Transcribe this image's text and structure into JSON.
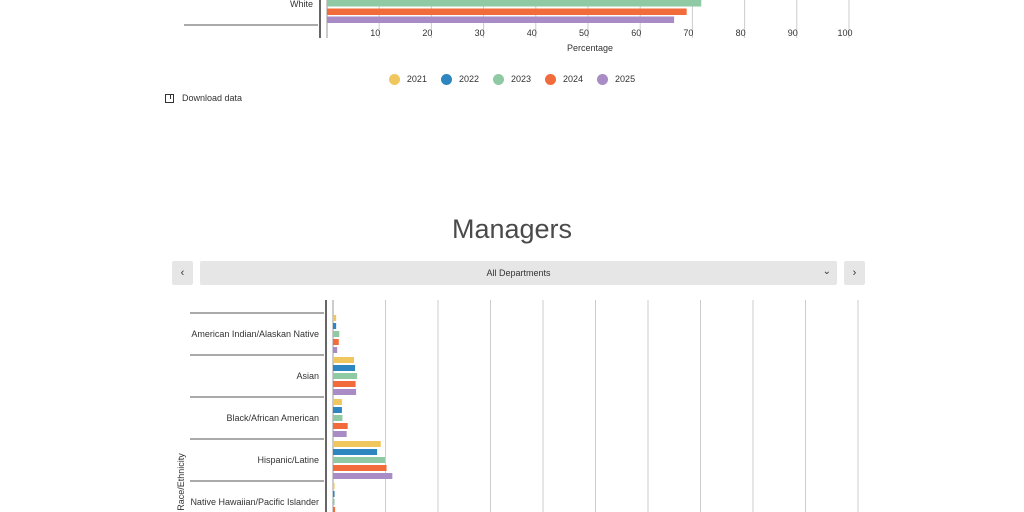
{
  "colors": {
    "2021": "#f0c75e",
    "2022": "#2e86c1",
    "2023": "#8fcaa5",
    "2024": "#f26b3a",
    "2025": "#a98bc6"
  },
  "legend": [
    {
      "label": "2021",
      "color": "#f0c75e"
    },
    {
      "label": "2022",
      "color": "#2e86c1"
    },
    {
      "label": "2023",
      "color": "#8fcaa5"
    },
    {
      "label": "2024",
      "color": "#f26b3a"
    },
    {
      "label": "2025",
      "color": "#a98bc6"
    }
  ],
  "download_label": "Download data",
  "managers_section": {
    "title": "Managers",
    "department": "All Departments"
  },
  "chart_data": [
    {
      "type": "bar",
      "orientation": "horizontal",
      "categories": [
        "White"
      ],
      "series": [
        {
          "name": "2023",
          "values": [
            71.7
          ]
        },
        {
          "name": "2024",
          "values": [
            68.9
          ]
        },
        {
          "name": "2025",
          "values": [
            66.5
          ]
        }
      ],
      "xlabel": "Percentage",
      "xticks": [
        10,
        20,
        30,
        40,
        50,
        60,
        70,
        80,
        90,
        100
      ],
      "xlim": [
        0,
        100
      ],
      "grid": true,
      "legend_position": "bottom"
    },
    {
      "type": "bar",
      "orientation": "horizontal",
      "ylabel": "Race/Ethnicity",
      "categories": [
        "American Indian/Alaskan Native",
        "Asian",
        "Black/African American",
        "Hispanic/Latine",
        "Native Hawaiian/Pacific Islander"
      ],
      "series": [
        {
          "name": "2021",
          "values": [
            0.6,
            4.0,
            1.7,
            9.1,
            0.3
          ]
        },
        {
          "name": "2022",
          "values": [
            0.6,
            4.2,
            1.7,
            8.4,
            0.3
          ]
        },
        {
          "name": "2023",
          "values": [
            1.2,
            4.6,
            1.8,
            9.9,
            0.3
          ]
        },
        {
          "name": "2024",
          "values": [
            1.1,
            4.3,
            2.8,
            10.2,
            0.4
          ]
        },
        {
          "name": "2025",
          "values": [
            0.8,
            4.4,
            2.6,
            11.3,
            0.4
          ]
        }
      ],
      "xlim": [
        0,
        100
      ],
      "grid": true
    }
  ]
}
